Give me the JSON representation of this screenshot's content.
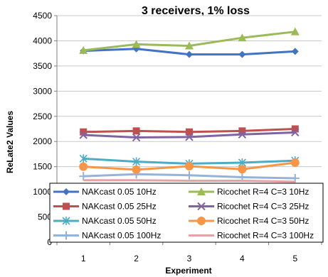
{
  "chart_data": {
    "type": "line",
    "title": "3 receivers, 1% loss",
    "xlabel": "Experiment",
    "ylabel": "ReLate2 Values",
    "categories": [
      "1",
      "2",
      "3",
      "4",
      "5"
    ],
    "ylim": [
      0,
      4500
    ],
    "yticks": [
      "0",
      "500",
      "1000",
      "1500",
      "2000",
      "2500",
      "3000",
      "3500",
      "4000",
      "4500"
    ],
    "grid": true,
    "legend_position": "bottom-inside",
    "series": [
      {
        "name": "NAKcast 0.05 10Hz",
        "color": "#4472c4",
        "marker": "diamond",
        "values": [
          3800,
          3840,
          3730,
          3730,
          3790
        ]
      },
      {
        "name": "NAKcast 0.05 25Hz",
        "color": "#c0504d",
        "marker": "square",
        "values": [
          2190,
          2210,
          2190,
          2210,
          2250
        ]
      },
      {
        "name": "NAKcast 0.05 50Hz",
        "color": "#4bacc6",
        "marker": "star",
        "values": [
          1660,
          1600,
          1560,
          1580,
          1620
        ]
      },
      {
        "name": "NAKcast 0.05 100Hz",
        "color": "#95b3d7",
        "marker": "plus",
        "values": [
          1310,
          1350,
          1330,
          1290,
          1270
        ]
      },
      {
        "name": "Ricochet R=4 C=3 10Hz",
        "color": "#9bbb59",
        "marker": "triangle",
        "values": [
          3810,
          3930,
          3900,
          4060,
          4180
        ]
      },
      {
        "name": "Ricochet R=4 C=3 25Hz",
        "color": "#8064a2",
        "marker": "x",
        "values": [
          2130,
          2080,
          2090,
          2140,
          2180
        ]
      },
      {
        "name": "Ricochet R=4 C=3 50Hz",
        "color": "#f79646",
        "marker": "circle",
        "values": [
          1500,
          1440,
          1510,
          1450,
          1580
        ]
      },
      {
        "name": "Ricochet R=4 C=3 100Hz",
        "color": "#e6a3a3",
        "marker": "none",
        "values": [
          1230,
          1230,
          1220,
          1220,
          1200
        ]
      }
    ]
  }
}
